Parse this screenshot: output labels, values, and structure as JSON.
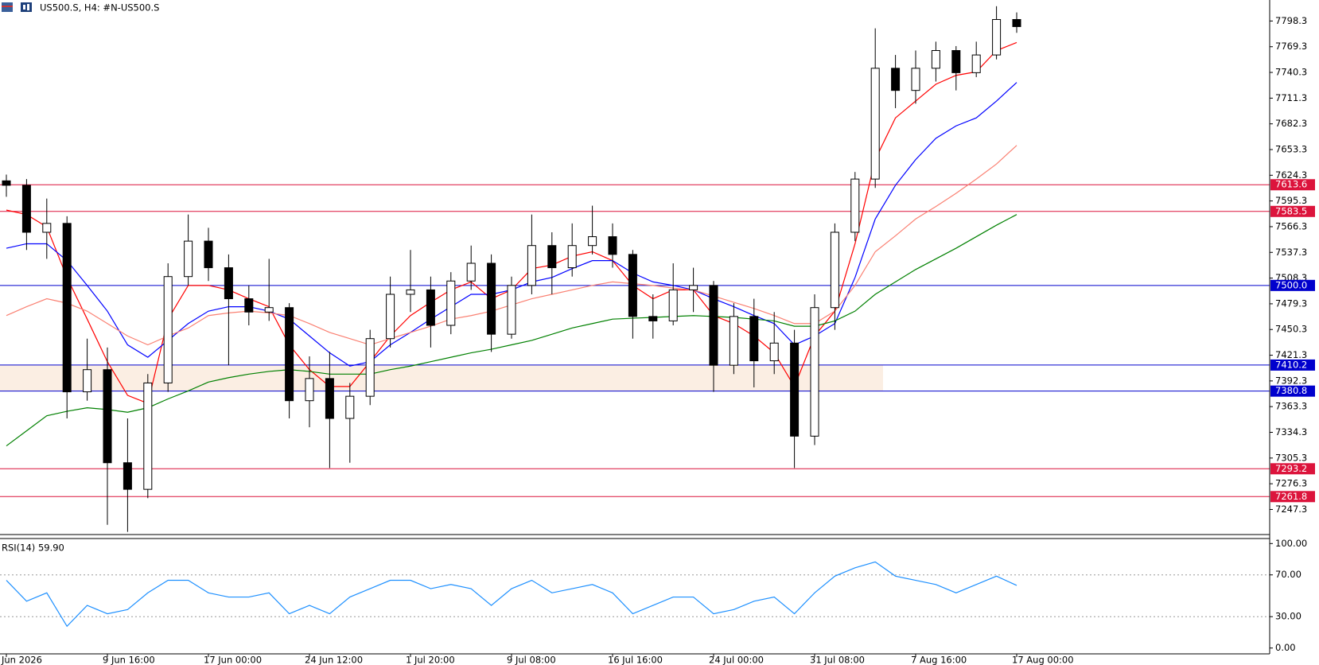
{
  "chart_data": [
    {
      "type": "candlestick",
      "title": "US500.S, H4:  #N-US500.S",
      "categories": [
        "Jun 2026",
        null,
        null,
        null,
        null,
        "9 Jun 16:00",
        null,
        null,
        null,
        null,
        "17 Jun 00:00",
        null,
        null,
        null,
        null,
        "24 Jun 12:00",
        null,
        null,
        null,
        null,
        "1 Jul 20:00",
        null,
        null,
        null,
        null,
        "9 Jul 08:00",
        null,
        null,
        null,
        null,
        "16 Jul 16:00",
        null,
        null,
        null,
        null,
        "24 Jul 00:00",
        null,
        null,
        null,
        null,
        "31 Jul 08:00",
        null,
        null,
        null,
        null,
        "7 Aug 16:00",
        null,
        null,
        null,
        null,
        "17 Aug 00:00"
      ],
      "open": [
        7618,
        7613,
        7560,
        7570,
        7380,
        7405,
        7300,
        7270,
        7390,
        7510,
        7550,
        7520,
        7485,
        7470,
        7475,
        7370,
        7395,
        7350,
        7375,
        7440,
        7490,
        7495,
        7455,
        7505,
        7525,
        7445,
        7500,
        7545,
        7520,
        7545,
        7555,
        7535,
        7465,
        7460,
        7495,
        7500,
        7410,
        7465,
        7415,
        7435,
        7330,
        7475,
        7560,
        7620,
        7745,
        7720,
        7745,
        7765,
        7740,
        7760,
        7800
      ],
      "high": [
        7625,
        7620,
        7598,
        7578,
        7440,
        7430,
        7350,
        7400,
        7525,
        7580,
        7565,
        7535,
        7500,
        7530,
        7480,
        7420,
        7425,
        7390,
        7450,
        7510,
        7540,
        7510,
        7515,
        7545,
        7535,
        7510,
        7580,
        7560,
        7570,
        7590,
        7570,
        7540,
        7490,
        7525,
        7520,
        7505,
        7480,
        7485,
        7470,
        7450,
        7490,
        7570,
        7628,
        7790,
        7760,
        7765,
        7775,
        7770,
        7775,
        7815,
        7808
      ],
      "low": [
        7600,
        7540,
        7530,
        7350,
        7370,
        7230,
        7222,
        7260,
        7380,
        7500,
        7505,
        7410,
        7455,
        7460,
        7350,
        7340,
        7294,
        7300,
        7365,
        7430,
        7470,
        7430,
        7445,
        7495,
        7425,
        7440,
        7490,
        7490,
        7510,
        7535,
        7520,
        7440,
        7440,
        7455,
        7470,
        7380,
        7400,
        7385,
        7400,
        7294,
        7320,
        7450,
        7550,
        7610,
        7700,
        7705,
        7730,
        7720,
        7735,
        7755,
        7785
      ],
      "close": [
        7613,
        7560,
        7570,
        7380,
        7405,
        7300,
        7270,
        7390,
        7510,
        7550,
        7520,
        7485,
        7470,
        7475,
        7370,
        7395,
        7350,
        7375,
        7440,
        7490,
        7495,
        7455,
        7505,
        7525,
        7445,
        7500,
        7545,
        7520,
        7545,
        7555,
        7535,
        7465,
        7460,
        7495,
        7500,
        7410,
        7465,
        7415,
        7435,
        7330,
        7475,
        7560,
        7620,
        7745,
        7720,
        7745,
        7765,
        7740,
        7760,
        7800,
        7792
      ],
      "series": [
        {
          "color": "#ff0000",
          "values": [
            7585,
            7580,
            7566,
            7509,
            7462,
            7414,
            7376,
            7367,
            7462,
            7500,
            7500,
            7495,
            7485,
            7476,
            7433,
            7405,
            7386,
            7386,
            7414,
            7443,
            7466,
            7481,
            7495,
            7504,
            7485,
            7495,
            7519,
            7523,
            7533,
            7538,
            7528,
            7500,
            7485,
            7495,
            7495,
            7466,
            7457,
            7443,
            7424,
            7386,
            7443,
            7471,
            7547,
            7642,
            7689,
            7708,
            7727,
            7737,
            7741,
            7765,
            7774
          ]
        },
        {
          "color": "#0000ff",
          "values": [
            7542,
            7547,
            7547,
            7528,
            7500,
            7471,
            7433,
            7419,
            7438,
            7457,
            7471,
            7476,
            7476,
            7471,
            7462,
            7443,
            7424,
            7409,
            7414,
            7433,
            7447,
            7462,
            7476,
            7490,
            7490,
            7495,
            7504,
            7509,
            7519,
            7528,
            7528,
            7514,
            7504,
            7500,
            7495,
            7485,
            7476,
            7466,
            7457,
            7433,
            7443,
            7457,
            7509,
            7575,
            7613,
            7642,
            7666,
            7680,
            7689,
            7708,
            7729
          ]
        },
        {
          "color": "#fa8072",
          "values": [
            7466,
            7476,
            7485,
            7480,
            7471,
            7457,
            7443,
            7433,
            7443,
            7452,
            7466,
            7469,
            7471,
            7469,
            7466,
            7457,
            7447,
            7440,
            7433,
            7440,
            7447,
            7454,
            7462,
            7466,
            7471,
            7478,
            7485,
            7490,
            7495,
            7500,
            7504,
            7502,
            7500,
            7497,
            7495,
            7488,
            7481,
            7474,
            7466,
            7457,
            7457,
            7471,
            7500,
            7538,
            7556,
            7575,
            7589,
            7604,
            7620,
            7637,
            7658
          ]
        },
        {
          "color": "#008000",
          "values": [
            7319,
            7336,
            7353,
            7358,
            7362,
            7360,
            7357,
            7362,
            7372,
            7381,
            7391,
            7396,
            7400,
            7403,
            7405,
            7403,
            7400,
            7400,
            7400,
            7405,
            7409,
            7414,
            7419,
            7424,
            7428,
            7433,
            7438,
            7445,
            7452,
            7457,
            7462,
            7463,
            7464,
            7465,
            7466,
            7465,
            7464,
            7462,
            7460,
            7454,
            7454,
            7460,
            7471,
            7490,
            7504,
            7518,
            7530,
            7542,
            7555,
            7568,
            7580
          ]
        }
      ],
      "ylim": [
        7219,
        7822
      ],
      "yticks": [
        7798.3,
        7769.3,
        7740.3,
        7711.3,
        7682.3,
        7653.3,
        7624.3,
        7595.3,
        7566.3,
        7537.3,
        7508.3,
        7479.3,
        7450.3,
        7421.3,
        7392.3,
        7363.3,
        7334.3,
        7305.3,
        7276.3,
        7247.3
      ],
      "levels": [
        {
          "value": 7613.6,
          "color": "#dc143c"
        },
        {
          "value": 7583.5,
          "color": "#dc143c"
        },
        {
          "value": 7500,
          "label": "7500.0",
          "color": "#0000cd"
        },
        {
          "value": 7410.2,
          "color": "#0000cd"
        },
        {
          "value": 7380.8,
          "color": "#0000cd"
        },
        {
          "value": 7293.2,
          "color": "#dc143c"
        },
        {
          "value": 7261.8,
          "color": "#dc143c"
        }
      ],
      "zone": {
        "low": 7380.8,
        "high": 7410.2,
        "color": "#fbeee3"
      }
    },
    {
      "type": "line",
      "title": "RSI(14) 59.90",
      "color": "#1e90ff",
      "values": [
        64.8,
        44.8,
        52.8,
        20.8,
        40.8,
        32.8,
        36.8,
        52.8,
        64.8,
        64.8,
        52.8,
        48.8,
        48.8,
        52.8,
        32.8,
        40.8,
        32.8,
        48.8,
        56.8,
        64.8,
        64.8,
        56.8,
        60.8,
        56.8,
        40.8,
        56.8,
        64.8,
        52.8,
        56.8,
        60.8,
        52.8,
        32.8,
        40.8,
        48.8,
        48.8,
        32.8,
        36.8,
        44.8,
        48.8,
        32.8,
        52.8,
        68.8,
        76.8,
        82.4,
        68.8,
        64.8,
        60.8,
        52.8,
        60.8,
        68.8,
        59.9
      ],
      "ylim": [
        -5.6,
        104.8
      ],
      "yticks": [
        {
          "value": 100,
          "label": "100.00"
        },
        {
          "value": 70,
          "label": "70.00"
        },
        {
          "value": 30,
          "label": "30.00"
        },
        {
          "value": 0,
          "label": "0.00"
        }
      ],
      "levels": [
        70,
        30
      ]
    }
  ]
}
